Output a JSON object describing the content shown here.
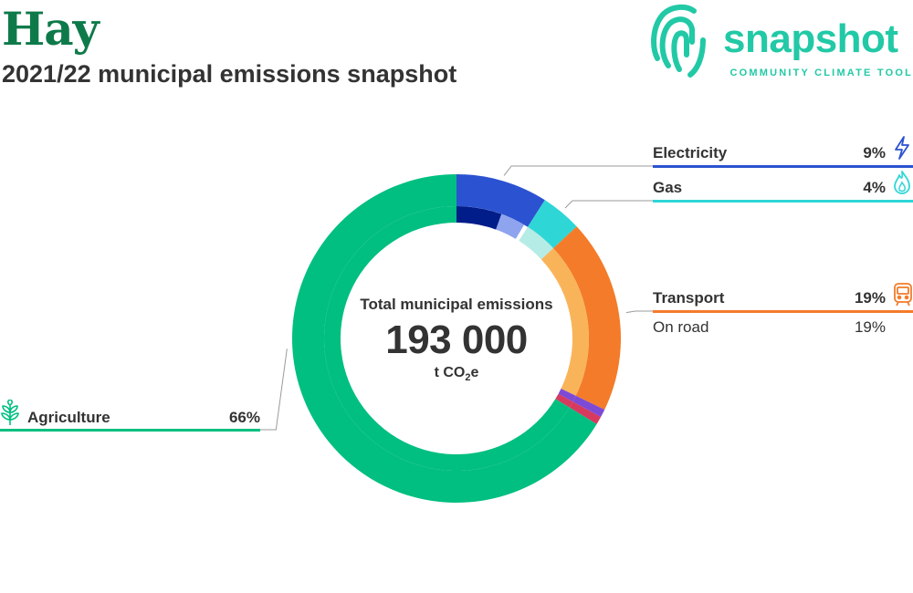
{
  "header": {
    "title": "Hay",
    "subtitle": "2021/22 municipal emissions snapshot"
  },
  "logo": {
    "wordmark": "snapshot",
    "tagline": "COMMUNITY CLIMATE TOOL",
    "color": "#22c9a6"
  },
  "center": {
    "label": "Total municipal emissions",
    "value": "193 000",
    "unit_prefix": "t CO",
    "unit_sub": "2",
    "unit_suffix": "e"
  },
  "legend": {
    "electricity": {
      "label": "Electricity",
      "pct": "9%",
      "color": "#2b52d0",
      "icon": "lightning-icon"
    },
    "gas": {
      "label": "Gas",
      "pct": "4%",
      "color": "#2fd6d6",
      "icon": "flame-icon"
    },
    "transport": {
      "label": "Transport",
      "pct": "19%",
      "color": "#f47b2a",
      "icon": "train-icon",
      "sub": {
        "label": "On road",
        "pct": "19%"
      }
    },
    "agriculture": {
      "label": "Agriculture",
      "pct": "66%",
      "color": "#00bf80",
      "icon": "plant-icon"
    }
  },
  "chart_data": {
    "type": "pie",
    "style": "donut",
    "title": "Total municipal emissions",
    "total": 193000,
    "unit": "t CO2e",
    "sectors": [
      {
        "name": "Electricity",
        "percent": 9,
        "color": "#2b52d0",
        "sub": [
          {
            "percent": 5.5,
            "color": "#001d8a"
          },
          {
            "percent": 3.0,
            "color": "#8fa4ee"
          }
        ]
      },
      {
        "name": "Gas",
        "percent": 4,
        "color": "#2fd6d6",
        "sub": [
          {
            "percent": 4,
            "color": "#b6ece6"
          }
        ]
      },
      {
        "name": "Transport",
        "percent": 19,
        "color": "#f47b2a",
        "sub": [
          {
            "name": "On road",
            "percent": 19,
            "color": "#f9b45a"
          }
        ]
      },
      {
        "name": "",
        "percent": 0.8,
        "color": "#7d4ad6"
      },
      {
        "name": "",
        "percent": 0.8,
        "color": "#d63a5e"
      },
      {
        "name": "Agriculture",
        "percent": 66,
        "color": "#00bf80"
      }
    ]
  }
}
